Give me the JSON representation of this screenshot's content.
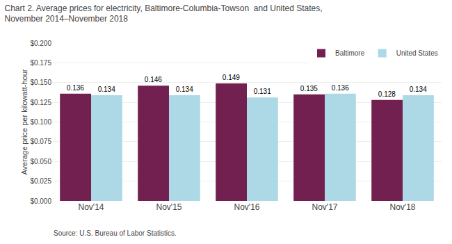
{
  "chart_data": {
    "type": "bar",
    "title": "Chart 2. Average prices for electricity, Baltimore-Columbia-Towson  and United States,\nNovember 2014–November 2018",
    "ylabel": "Average price per kilowatt-hour",
    "annotations": [
      "Source: U.S. Bureau of Labor Statistics."
    ],
    "categories": [
      "Nov'14",
      "Nov'15",
      "Nov'16",
      "Nov'17",
      "Nov'18"
    ],
    "series": [
      {
        "name": "Baltimore",
        "color": "#722050",
        "values": [
          0.136,
          0.146,
          0.149,
          0.135,
          0.128
        ]
      },
      {
        "name": "United States",
        "color": "#add8e6",
        "values": [
          0.134,
          0.134,
          0.131,
          0.136,
          0.134
        ]
      }
    ],
    "ylim": [
      0,
      0.2
    ],
    "yticks": [
      {
        "value": 0,
        "label": "$0.000"
      },
      {
        "value": 0.025,
        "label": "$0.025"
      },
      {
        "value": 0.05,
        "label": "$0.050"
      },
      {
        "value": 0.075,
        "label": "$0.075"
      },
      {
        "value": 0.1,
        "label": "$0.100"
      },
      {
        "value": 0.125,
        "label": "$0.125"
      },
      {
        "value": 0.15,
        "label": "$0.150"
      },
      {
        "value": 0.175,
        "label": "$0.175"
      },
      {
        "value": 0.2,
        "label": "$0.200"
      }
    ],
    "grid": true,
    "legend": "upper right",
    "data_labels": true
  }
}
